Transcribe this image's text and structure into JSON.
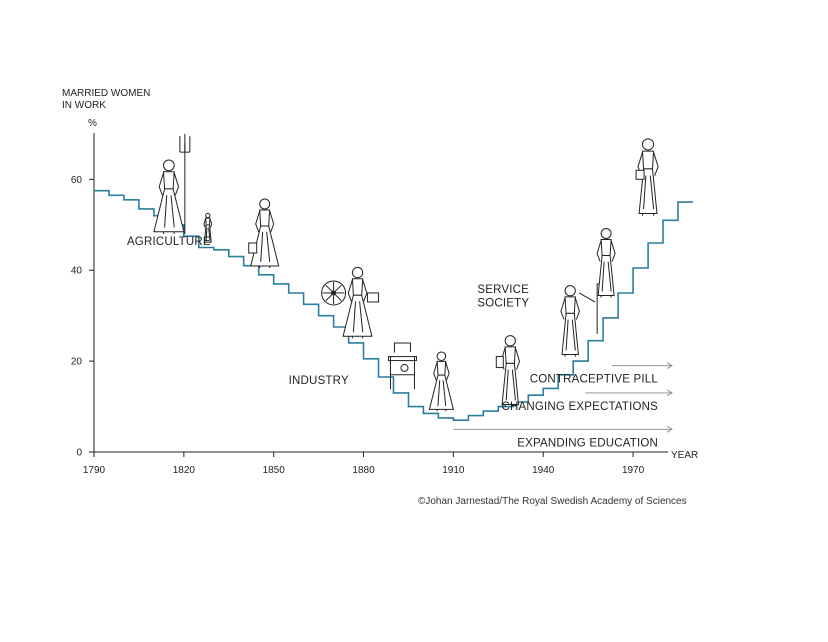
{
  "chart_data": {
    "type": "line",
    "step": true,
    "ylabel": "MARRIED WOMEN IN WORK",
    "ylabel_lines": [
      "MARRIED WOMEN",
      "IN WORK"
    ],
    "yunit": "%",
    "xlabel": "YEAR",
    "xlim": [
      1790,
      1985
    ],
    "ylim": [
      0,
      68
    ],
    "xticks": [
      1790,
      1820,
      1850,
      1880,
      1910,
      1940,
      1970
    ],
    "yticks": [
      0,
      20,
      40,
      60
    ],
    "line_color": "#2b7f9e",
    "series": [
      {
        "x": [
          1790,
          1795,
          1800,
          1805,
          1810,
          1815,
          1820,
          1825,
          1830,
          1835,
          1840,
          1845,
          1850,
          1855,
          1860,
          1865,
          1870,
          1875,
          1880,
          1885,
          1890,
          1895,
          1900,
          1905,
          1910,
          1915,
          1920,
          1925,
          1930,
          1935,
          1940,
          1945,
          1950,
          1955,
          1960,
          1965,
          1970,
          1975,
          1980,
          1985
        ],
        "y": [
          57.5,
          56.5,
          55.5,
          53.5,
          52,
          50,
          47.5,
          45,
          44.5,
          43,
          41,
          39,
          37,
          35,
          32.5,
          30,
          27.5,
          24,
          20.5,
          16.5,
          13,
          10,
          8.5,
          7.5,
          7,
          8,
          9,
          10,
          11,
          12.5,
          14,
          17,
          20,
          24.5,
          29.5,
          35,
          40.5,
          46,
          51,
          55
        ]
      }
    ],
    "annotations": [
      {
        "text": "AGRICULTURE",
        "x": 1801,
        "y": 45.5
      },
      {
        "text": "INDUSTRY",
        "x": 1855,
        "y": 15
      },
      {
        "text": "SERVICE",
        "x": 1918,
        "y": 35
      },
      {
        "text": "SOCIETY",
        "x": 1918,
        "y": 32
      }
    ],
    "arrows": [
      {
        "text": "CONTRACEPTIVE PILL",
        "x_start": 1963,
        "x_end": 1983,
        "y": 19
      },
      {
        "text": "CHANGING EXPECTATIONS",
        "x_start": 1954,
        "x_end": 1983,
        "y": 13
      },
      {
        "text": "EXPANDING EDUCATION",
        "x_start": 1910,
        "x_end": 1983,
        "y": 5
      }
    ],
    "credit": "©Johan Jarnestad/The Royal Swedish Academy of Sciences"
  },
  "figures": [
    {
      "name": "farmer-with-pitchfork-figure",
      "year": 1817,
      "value": 57
    },
    {
      "name": "child-figure",
      "year": 1828,
      "value": 47
    },
    {
      "name": "milkmaid-figure",
      "year": 1847,
      "value": 44
    },
    {
      "name": "spinning-wheel-icon",
      "year": 1870,
      "value": 35
    },
    {
      "name": "spinner-woman-figure",
      "year": 1878,
      "value": 34
    },
    {
      "name": "sewing-machine-icon",
      "year": 1893,
      "value": 19
    },
    {
      "name": "factory-worker-figure",
      "year": 1906,
      "value": 16
    },
    {
      "name": "office-woman-figure",
      "year": 1929,
      "value": 24
    },
    {
      "name": "teacher-figure",
      "year": 1950,
      "value": 36
    },
    {
      "name": "professional-woman-figure",
      "year": 1961,
      "value": 47
    },
    {
      "name": "executive-woman-figure",
      "year": 1975,
      "value": 64
    }
  ]
}
